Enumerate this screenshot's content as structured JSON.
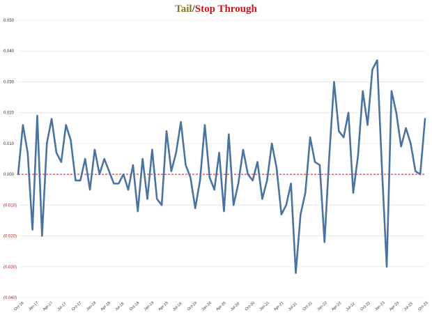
{
  "title": {
    "part1": "Tail",
    "separator": "/",
    "part2": "Stop Through"
  },
  "colors": {
    "title_tail": "#7a7a22",
    "title_stop": "#c0171d",
    "line": "#4a73a0",
    "zero_line": "#c0171d",
    "grid": "#e6e6e6",
    "negative_tick": "#c0171d",
    "positive_tick": "#333333"
  },
  "chart_data": {
    "type": "line",
    "title": "Tail/Stop Through",
    "xlabel": "",
    "ylabel": "",
    "ylim": [
      -0.04,
      0.05
    ],
    "grid": true,
    "legend": "none",
    "zero_line": "dashed",
    "y_ticks": [
      0.05,
      0.04,
      0.03,
      0.02,
      0.01,
      0.0,
      -0.01,
      -0.02,
      -0.03,
      -0.04
    ],
    "y_tick_labels": [
      "0.050",
      "0.040",
      "0.030",
      "0.020",
      "0.010",
      "0.000",
      "(0.010)",
      "(0.020)",
      "(0.030)",
      "(0.040)"
    ],
    "x_tick_labels": [
      "Oct-16",
      "Jan-17",
      "Apr-17",
      "Jul-17",
      "Oct-17",
      "Jan-18",
      "Apr-18",
      "Jul-18",
      "Oct-18",
      "Jan-19",
      "Apr-19",
      "Jul-19",
      "Oct-19",
      "Jan-20",
      "Apr-20",
      "Jul-20",
      "Oct-20",
      "Jan-21",
      "Apr-21",
      "Jul-21",
      "Oct-21",
      "Jan-22",
      "Apr-22",
      "Jul-22",
      "Oct-22",
      "Jan-23",
      "Apr-23",
      "Jul-23",
      "Oct-23"
    ],
    "series": [
      {
        "values": [
          0.0,
          0.016,
          0.007,
          -0.018,
          0.019,
          -0.02,
          0.01,
          0.018,
          0.007,
          0.004,
          0.016,
          0.011,
          -0.002,
          -0.002,
          0.005,
          -0.005,
          0.008,
          0.0,
          0.005,
          0.001,
          -0.003,
          -0.003,
          0.0,
          -0.005,
          0.003,
          -0.012,
          0.005,
          -0.008,
          0.008,
          -0.008,
          -0.01,
          0.014,
          0.001,
          0.007,
          0.017,
          0.003,
          -0.001,
          -0.011,
          -0.002,
          0.016,
          -0.001,
          -0.005,
          0.007,
          -0.012,
          0.013,
          -0.01,
          -0.003,
          0.008,
          0.0,
          -0.002,
          0.004,
          -0.008,
          -0.002,
          0.01,
          0.002,
          -0.013,
          -0.01,
          -0.003,
          -0.032,
          -0.013,
          -0.006,
          0.012,
          0.004,
          0.003,
          -0.022,
          0.006,
          0.03,
          0.014,
          0.012,
          0.02,
          -0.006,
          0.006,
          0.027,
          0.016,
          0.034,
          0.037,
          0.002,
          -0.03,
          0.027,
          0.02,
          0.009,
          0.015,
          0.01,
          0.001,
          0.0,
          0.018
        ]
      }
    ]
  }
}
